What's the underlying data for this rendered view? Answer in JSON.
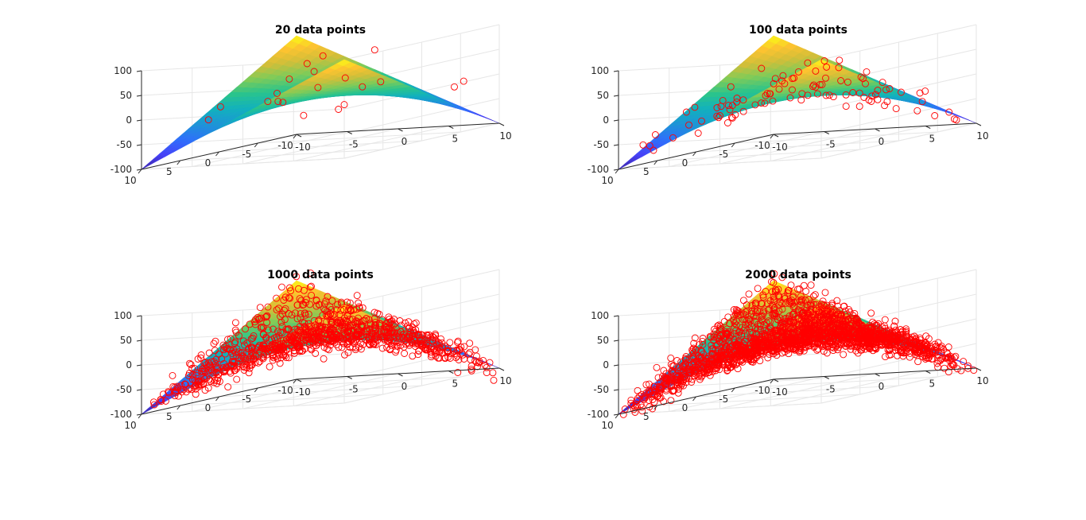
{
  "figure": {
    "layout": "2x2 grid of 3-D surface plots with sample points",
    "background": "#ffffff"
  },
  "style": {
    "marker_color": "#ff0000",
    "marker": "open-circle",
    "grid_color": "#e6e6e6",
    "axis_color": "#262626",
    "surface_colormap": [
      "#3e26a8",
      "#4743f8",
      "#2f6ffb",
      "#1e94d7",
      "#12b1bd",
      "#2ac48c",
      "#80cb58",
      "#d1be39",
      "#fcc330",
      "#f9fb15"
    ]
  },
  "chart_data": [
    {
      "type": "scatter",
      "title": "20 data points",
      "xlabel": "",
      "ylabel": "",
      "zlabel": "",
      "xlim": [
        -10,
        10
      ],
      "ylim": [
        -10,
        10
      ],
      "zlim": [
        -100,
        100
      ],
      "xticks": [
        "-10",
        "-5",
        "0",
        "5",
        "10"
      ],
      "yticks": [
        "-10",
        "-5",
        "0",
        "5",
        "10"
      ],
      "zticks": [
        "-100",
        "-50",
        "0",
        "50",
        "100"
      ],
      "grid": true,
      "surface": "z = x * y",
      "n_points": 20,
      "points": [
        [
          7.1,
          -9.2,
          -8.6
        ],
        [
          -3.2,
          2.6,
          3.8
        ],
        [
          -0.7,
          -0.6,
          17.9
        ],
        [
          -4.4,
          -0.3,
          -5.1
        ],
        [
          4.8,
          3.2,
          -9.6
        ],
        [
          0.5,
          5.5,
          8.1
        ],
        [
          -4.6,
          -4.3,
          57.7
        ],
        [
          -7.4,
          3.2,
          -0.1
        ],
        [
          1.9,
          6.5,
          57.4
        ],
        [
          2.7,
          5.7,
          -20.3
        ],
        [
          7.4,
          -7.6,
          -14.9
        ],
        [
          -6.3,
          6.2,
          -17.1
        ],
        [
          -1.3,
          -8.7,
          66.2
        ],
        [
          -4.9,
          -5.6,
          37.3
        ],
        [
          -6.1,
          -8.3,
          61.0
        ],
        [
          7.9,
          8.0,
          -5.5
        ],
        [
          4.9,
          3.2,
          44.6
        ],
        [
          -0.6,
          -6.2,
          -0.7
        ],
        [
          4.8,
          -1.5,
          20.3
        ],
        [
          -8.1,
          -5.0,
          -1.1
        ]
      ]
    },
    {
      "type": "scatter",
      "title": "100 data points",
      "xlabel": "",
      "ylabel": "",
      "zlabel": "",
      "xlim": [
        -10,
        10
      ],
      "ylim": [
        -10,
        10
      ],
      "zlim": [
        -100,
        100
      ],
      "xticks": [
        "-10",
        "-5",
        "0",
        "5",
        "10"
      ],
      "yticks": [
        "-10",
        "-5",
        "0",
        "5",
        "10"
      ],
      "zticks": [
        "-100",
        "-50",
        "0",
        "50",
        "100"
      ],
      "grid": true,
      "surface": "z = x * y",
      "n_points": 100
    },
    {
      "type": "scatter",
      "title": "1000 data points",
      "xlabel": "",
      "ylabel": "",
      "zlabel": "",
      "xlim": [
        -10,
        10
      ],
      "ylim": [
        -10,
        10
      ],
      "zlim": [
        -100,
        100
      ],
      "xticks": [
        "-10",
        "-5",
        "0",
        "5",
        "10"
      ],
      "yticks": [
        "-10",
        "-5",
        "0",
        "5",
        "10"
      ],
      "zticks": [
        "-100",
        "-50",
        "0",
        "50",
        "100"
      ],
      "grid": true,
      "surface": "z = x * y",
      "n_points": 1000
    },
    {
      "type": "scatter",
      "title": "2000 data points",
      "xlabel": "",
      "ylabel": "",
      "zlabel": "",
      "xlim": [
        -10,
        10
      ],
      "ylim": [
        -10,
        10
      ],
      "zlim": [
        -100,
        100
      ],
      "xticks": [
        "-10",
        "-5",
        "0",
        "5",
        "10"
      ],
      "yticks": [
        "-10",
        "-5",
        "0",
        "5",
        "10"
      ],
      "zticks": [
        "-100",
        "-50",
        "0",
        "50",
        "100"
      ],
      "grid": true,
      "surface": "z = x * y",
      "n_points": 2000
    }
  ]
}
